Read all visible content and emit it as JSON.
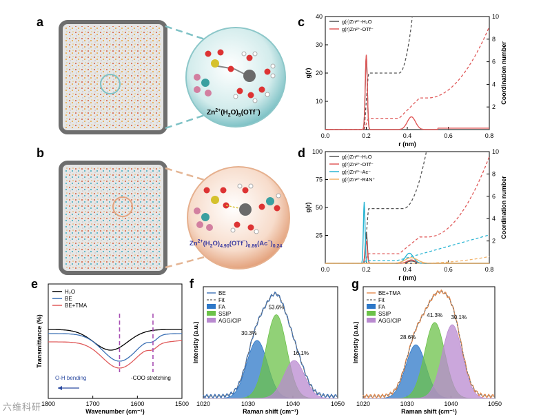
{
  "panels": {
    "a": {
      "letter": "a"
    },
    "b": {
      "letter": "b"
    },
    "c": {
      "letter": "c"
    },
    "d": {
      "letter": "d"
    },
    "e": {
      "letter": "e"
    },
    "f": {
      "letter": "f"
    },
    "g": {
      "letter": "g"
    }
  },
  "sim_a": {
    "label_main": "Zn",
    "label_sup": "2+",
    "label_rest": "(H",
    "label_sub1": "2",
    "label_o": "O)",
    "label_sub2": "5",
    "label_end": "(OTf",
    "label_end_sup": "−",
    "label_close": ")"
  },
  "sim_b": {
    "t1": "Zn",
    "t1sup": "2+",
    "t2": "(H",
    "t2sub": "2",
    "t3": "O)",
    "t3sub": "4.90",
    "t4": "(OTf",
    "t4sup": "−",
    "t5": ")",
    "t5sub": "0.86",
    "t6": "(Ac",
    "t6sup": "−",
    "t7": ")",
    "t7sub": "0.24"
  },
  "colors": {
    "h2o": "#555555",
    "otf": "#e05a5a",
    "ac": "#2bb5d3",
    "r4n": "#f2b36b",
    "be": "#3b70b5",
    "fa": "#2e78c8",
    "ssip": "#6cc24a",
    "agg": "#b98ad0",
    "fit": "#777777",
    "bet": "#e58a4d",
    "purple": "#a74fb3"
  },
  "chart_data": [
    {
      "id": "c",
      "type": "line",
      "xlabel": "r (nm)",
      "ylabel": "g(r)",
      "y2label": "Coordination number",
      "xlim": [
        0,
        0.8
      ],
      "ylim": [
        0,
        40
      ],
      "y2lim": [
        0,
        10
      ],
      "xticks": [
        "0.0",
        "0.2",
        "0.4",
        "0.6",
        "0.8"
      ],
      "yticks": [
        "10",
        "20",
        "30",
        "40"
      ],
      "y2ticks": [
        "2",
        "4",
        "6",
        "8",
        "10"
      ],
      "legend": [
        "g(r)Zn²⁺-H₂O",
        "g(r)Zn²⁺-OTf⁻"
      ],
      "series": [
        {
          "name": "g(r)Zn²⁺-H₂O",
          "peak_r": 0.2,
          "peak_g": 26.0,
          "cn_plateau": 5.0
        },
        {
          "name": "g(r)Zn²⁺-OTf⁻",
          "peak_r": 0.2,
          "peak_g": 26.5,
          "second_peak_r": 0.42,
          "second_peak_g": 4.5,
          "cn_plateau": 1.0
        }
      ]
    },
    {
      "id": "d",
      "type": "line",
      "xlabel": "r (nm)",
      "ylabel": "g(r)",
      "y2label": "Coordination number",
      "xlim": [
        0,
        0.8
      ],
      "ylim": [
        0,
        100
      ],
      "y2lim": [
        0,
        10
      ],
      "xticks": [
        "0.0",
        "0.2",
        "0.4",
        "0.6",
        "0.8"
      ],
      "yticks": [
        "25",
        "50",
        "75",
        "100"
      ],
      "y2ticks": [
        "2",
        "4",
        "6",
        "8",
        "10"
      ],
      "legend": [
        "g(r)Zn²⁺-H₂O",
        "g(r)Zn²⁺-OTf⁻",
        "g(r)Zn²⁺-Ac⁻",
        "g(r)Zn²⁺-R4N⁺"
      ],
      "series": [
        {
          "name": "g(r)Zn²⁺-H₂O",
          "peak_r": 0.2,
          "peak_g": 28,
          "cn_plateau": 4.9
        },
        {
          "name": "g(r)Zn²⁺-OTf⁻",
          "peak_r": 0.2,
          "peak_g": 20,
          "cn_plateau": 0.86
        },
        {
          "name": "g(r)Zn²⁺-Ac⁻",
          "peak_r": 0.19,
          "peak_g": 55,
          "cn_end": 2.5
        },
        {
          "name": "g(r)Zn²⁺-R4N⁺",
          "peak_r": 0.42,
          "peak_g": 5,
          "cn_end": 0.6
        }
      ]
    },
    {
      "id": "e",
      "type": "line",
      "xlabel": "Wavenumber (cm⁻¹)",
      "ylabel": "Transmittance (%)",
      "xlim": [
        1800,
        1500
      ],
      "xticks": [
        "1800",
        "1700",
        "1600",
        "1500"
      ],
      "legend": [
        "H₂O",
        "BE",
        "BE+TMA"
      ],
      "annotations": [
        "O-H bending",
        "-COO stretching"
      ],
      "series": [
        {
          "name": "H₂O",
          "min_x": 1660
        },
        {
          "name": "BE",
          "min_x": 1640
        },
        {
          "name": "BE+TMA",
          "min_x": 1640
        }
      ]
    },
    {
      "id": "f",
      "type": "area",
      "xlabel": "Raman shift (cm⁻¹)",
      "ylabel": "Intensity (a.u.)",
      "xlim": [
        1020,
        1050
      ],
      "xticks": [
        "1020",
        "1030",
        "1040",
        "1050"
      ],
      "legend": [
        "BE",
        "Fit",
        "FA",
        "SSIP",
        "AGG/CIP"
      ],
      "peaks": [
        {
          "name": "FA",
          "center": 1032.0,
          "height": 0.52,
          "label": "30.3%"
        },
        {
          "name": "SSIP",
          "center": 1036.3,
          "height": 0.75,
          "label": "53.6%"
        },
        {
          "name": "AGG/CIP",
          "center": 1040.3,
          "height": 0.34,
          "label": "16.1%"
        }
      ]
    },
    {
      "id": "g",
      "type": "area",
      "xlabel": "Raman shift (cm⁻¹)",
      "ylabel": "Intensity (a.u.)",
      "xlim": [
        1020,
        1050
      ],
      "xticks": [
        "1020",
        "1030",
        "1040",
        "1050"
      ],
      "legend": [
        "BE+TMA",
        "Fit",
        "FA",
        "SSIP",
        "AGG/CIP"
      ],
      "peaks": [
        {
          "name": "FA",
          "center": 1032.0,
          "height": 0.48,
          "label": "28.6%"
        },
        {
          "name": "SSIP",
          "center": 1036.3,
          "height": 0.68,
          "label": "41.3%"
        },
        {
          "name": "AGG/CIP",
          "center": 1040.3,
          "height": 0.66,
          "label": "30.1%"
        }
      ]
    }
  ],
  "watermark": "六维科研"
}
